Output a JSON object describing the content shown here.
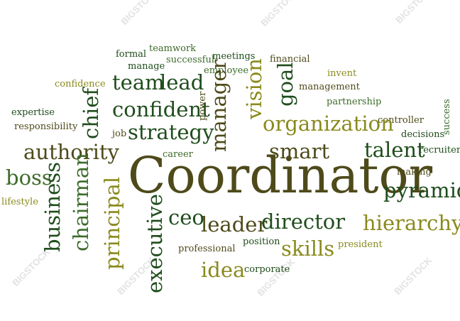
{
  "watermark": "BIGSTOCK",
  "palette": {
    "dark_green": "#1f4d1c",
    "mid_green": "#3d6b2a",
    "olive": "#8a8a1e",
    "dark_olive": "#4e4a1a",
    "khaki": "#a89a4a"
  },
  "words": {
    "coordinator": "Coordinator",
    "formal": "formal",
    "teamwork": "teamwork",
    "manage": "manage",
    "successful": "successful",
    "meetings": "meetings",
    "financial": "financial",
    "employee": "employee",
    "invent": "invent",
    "confidence": "confidence",
    "team": "team",
    "lead": "lead",
    "management": "management",
    "partnership": "partnership",
    "expertise": "expertise",
    "confident": "confident",
    "chief": "chief",
    "power": "power",
    "manager": "manager",
    "vision": "vision",
    "goal": "goal",
    "controller": "controller",
    "success": "success",
    "responsibility": "responsibility",
    "organization": "organization",
    "decisions": "decisions",
    "job": "job",
    "strategy": "strategy",
    "authority": "authority",
    "smart": "smart",
    "talent": "talent",
    "recruiter": "recruiter",
    "career": "career",
    "making": "making",
    "boss": "boss",
    "pyramid": "pyramid",
    "lifestyle": "lifestyle",
    "business": "business",
    "chairman": "chairman",
    "principal": "principal",
    "executive": "executive",
    "ceo": "ceo",
    "leader": "leader",
    "director": "director",
    "hierarchy": "hierarchy",
    "position": "position",
    "president": "president",
    "professional": "professional",
    "skills": "skills",
    "idea": "idea",
    "corporate": "corporate"
  }
}
